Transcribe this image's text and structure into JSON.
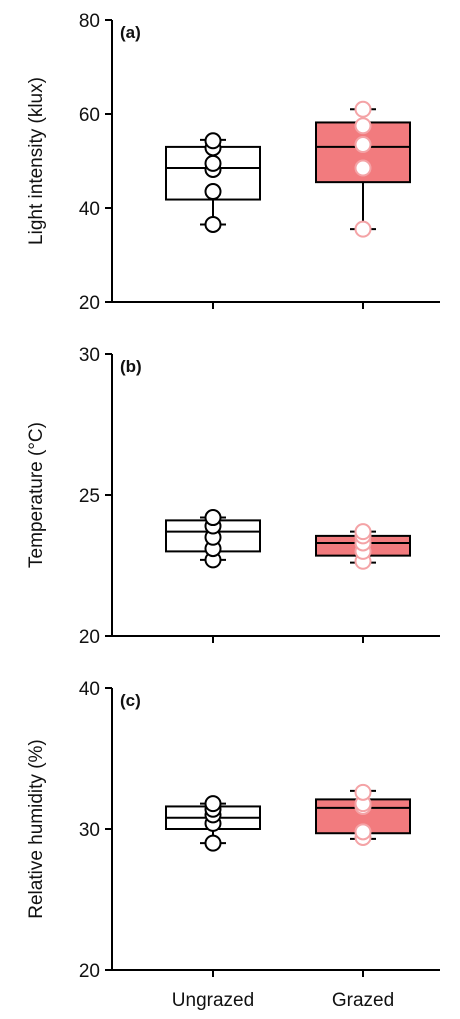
{
  "chart_data": [
    {
      "type": "box",
      "panel_label": "(a)",
      "ylabel": "Light intensity (klux)",
      "ylim": [
        20,
        80
      ],
      "yticks": [
        20,
        40,
        60,
        80
      ],
      "categories": [
        "Ungrazed",
        "Grazed"
      ],
      "boxes": [
        {
          "name": "Ungrazed",
          "whisker_low": 36.5,
          "q1": 41.8,
          "median": 48.5,
          "q3": 53,
          "whisker_high": 54.5,
          "points": [
            36.5,
            43.5,
            48.2,
            49.5,
            52.8,
            54.3
          ]
        },
        {
          "name": "Grazed",
          "whisker_low": 35.5,
          "q1": 45.5,
          "median": 53,
          "q3": 58.2,
          "whisker_high": 61,
          "points": [
            35.5,
            48.5,
            53.5,
            57.5,
            61
          ]
        }
      ]
    },
    {
      "type": "box",
      "panel_label": "(b)",
      "ylabel": "Temperature (°C)",
      "ylim": [
        20,
        30
      ],
      "yticks": [
        20,
        25,
        30
      ],
      "categories": [
        "Ungrazed",
        "Grazed"
      ],
      "boxes": [
        {
          "name": "Ungrazed",
          "whisker_low": 22.7,
          "q1": 23,
          "median": 23.7,
          "q3": 24.1,
          "whisker_high": 24.2,
          "points": [
            22.7,
            23.1,
            23.5,
            23.9,
            24.2
          ]
        },
        {
          "name": "Grazed",
          "whisker_low": 22.6,
          "q1": 22.85,
          "median": 23.3,
          "q3": 23.55,
          "whisker_high": 23.7,
          "points": [
            22.65,
            23.0,
            23.3,
            23.55,
            23.7
          ]
        }
      ]
    },
    {
      "type": "box",
      "panel_label": "(c)",
      "ylabel": "Relative humidity (%)",
      "ylim": [
        20,
        40
      ],
      "yticks": [
        20,
        30,
        40
      ],
      "categories": [
        "Ungrazed",
        "Grazed"
      ],
      "boxes": [
        {
          "name": "Ungrazed",
          "whisker_low": 29,
          "q1": 30,
          "median": 30.8,
          "q3": 31.6,
          "whisker_high": 31.8,
          "points": [
            29,
            30.4,
            31,
            31.4,
            31.8
          ]
        },
        {
          "name": "Grazed",
          "whisker_low": 29.3,
          "q1": 29.7,
          "median": 31.5,
          "q3": 32.1,
          "whisker_high": 32.7,
          "points": [
            29.4,
            29.8,
            31.6,
            31.8,
            32.6
          ]
        }
      ]
    }
  ],
  "colors": {
    "ungrazed_fill": "#ffffff",
    "ungrazed_stroke": "#000000",
    "grazed_fill": "#f27b7e",
    "grazed_stroke": "#000000",
    "grazed_point_stroke": "#f4a3a6",
    "axis": "#000000"
  }
}
